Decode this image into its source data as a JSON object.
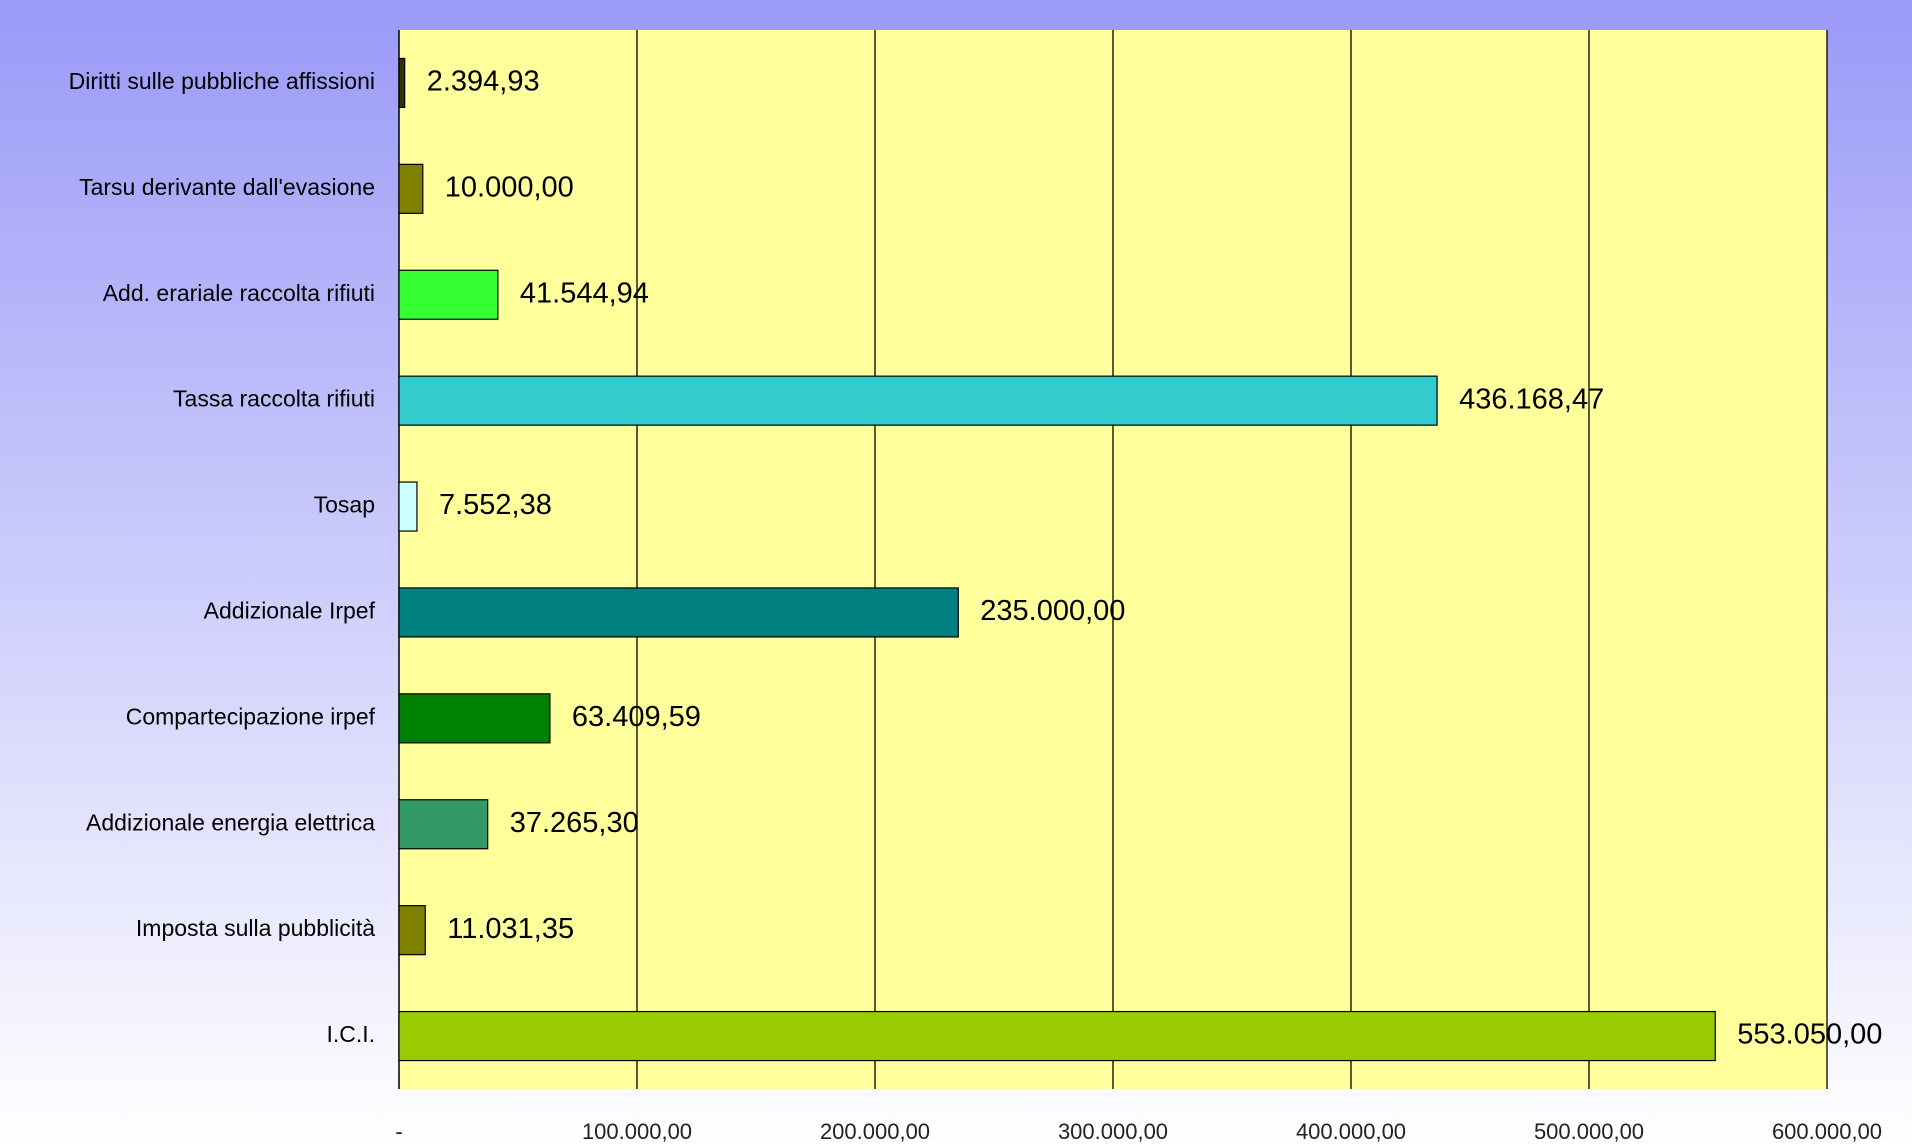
{
  "chart_data": {
    "type": "bar",
    "orientation": "horizontal",
    "categories": [
      "Diritti sulle pubbliche affissioni",
      "Tarsu derivante dall'evasione",
      "Add. erariale raccolta rifiuti",
      "Tassa raccolta rifiuti",
      "Tosap",
      "Addizionale Irpef",
      "Compartecipazione irpef",
      "Addizionale energia elettrica",
      "Imposta sulla pubblicità",
      "I.C.I."
    ],
    "values": [
      2394.93,
      10000,
      41544.94,
      436168.47,
      7552.38,
      235000,
      63409.59,
      37265.3,
      11031.35,
      553050
    ],
    "value_labels": [
      "2.394,93",
      "10.000,00",
      "41.544,94",
      "436.168,47",
      "7.552,38",
      "235.000,00",
      "63.409,59",
      "37.265,30",
      "11.031,35",
      "553.050,00"
    ],
    "colors": [
      "#333300",
      "#808000",
      "#33ff33",
      "#33cccc",
      "#ccffff",
      "#008080",
      "#008000",
      "#339966",
      "#808000",
      "#99cc00"
    ],
    "xlim": [
      0,
      600000
    ],
    "xticks": [
      {
        "value": 0,
        "label": "-"
      },
      {
        "value": 100000,
        "label": "100.000,00"
      },
      {
        "value": 200000,
        "label": "200.000,00"
      },
      {
        "value": 300000,
        "label": "300.000,00"
      },
      {
        "value": 400000,
        "label": "400.000,00"
      },
      {
        "value": 500000,
        "label": "500.000,00"
      },
      {
        "value": 600000,
        "label": "600.000,00"
      }
    ],
    "grid": true
  }
}
